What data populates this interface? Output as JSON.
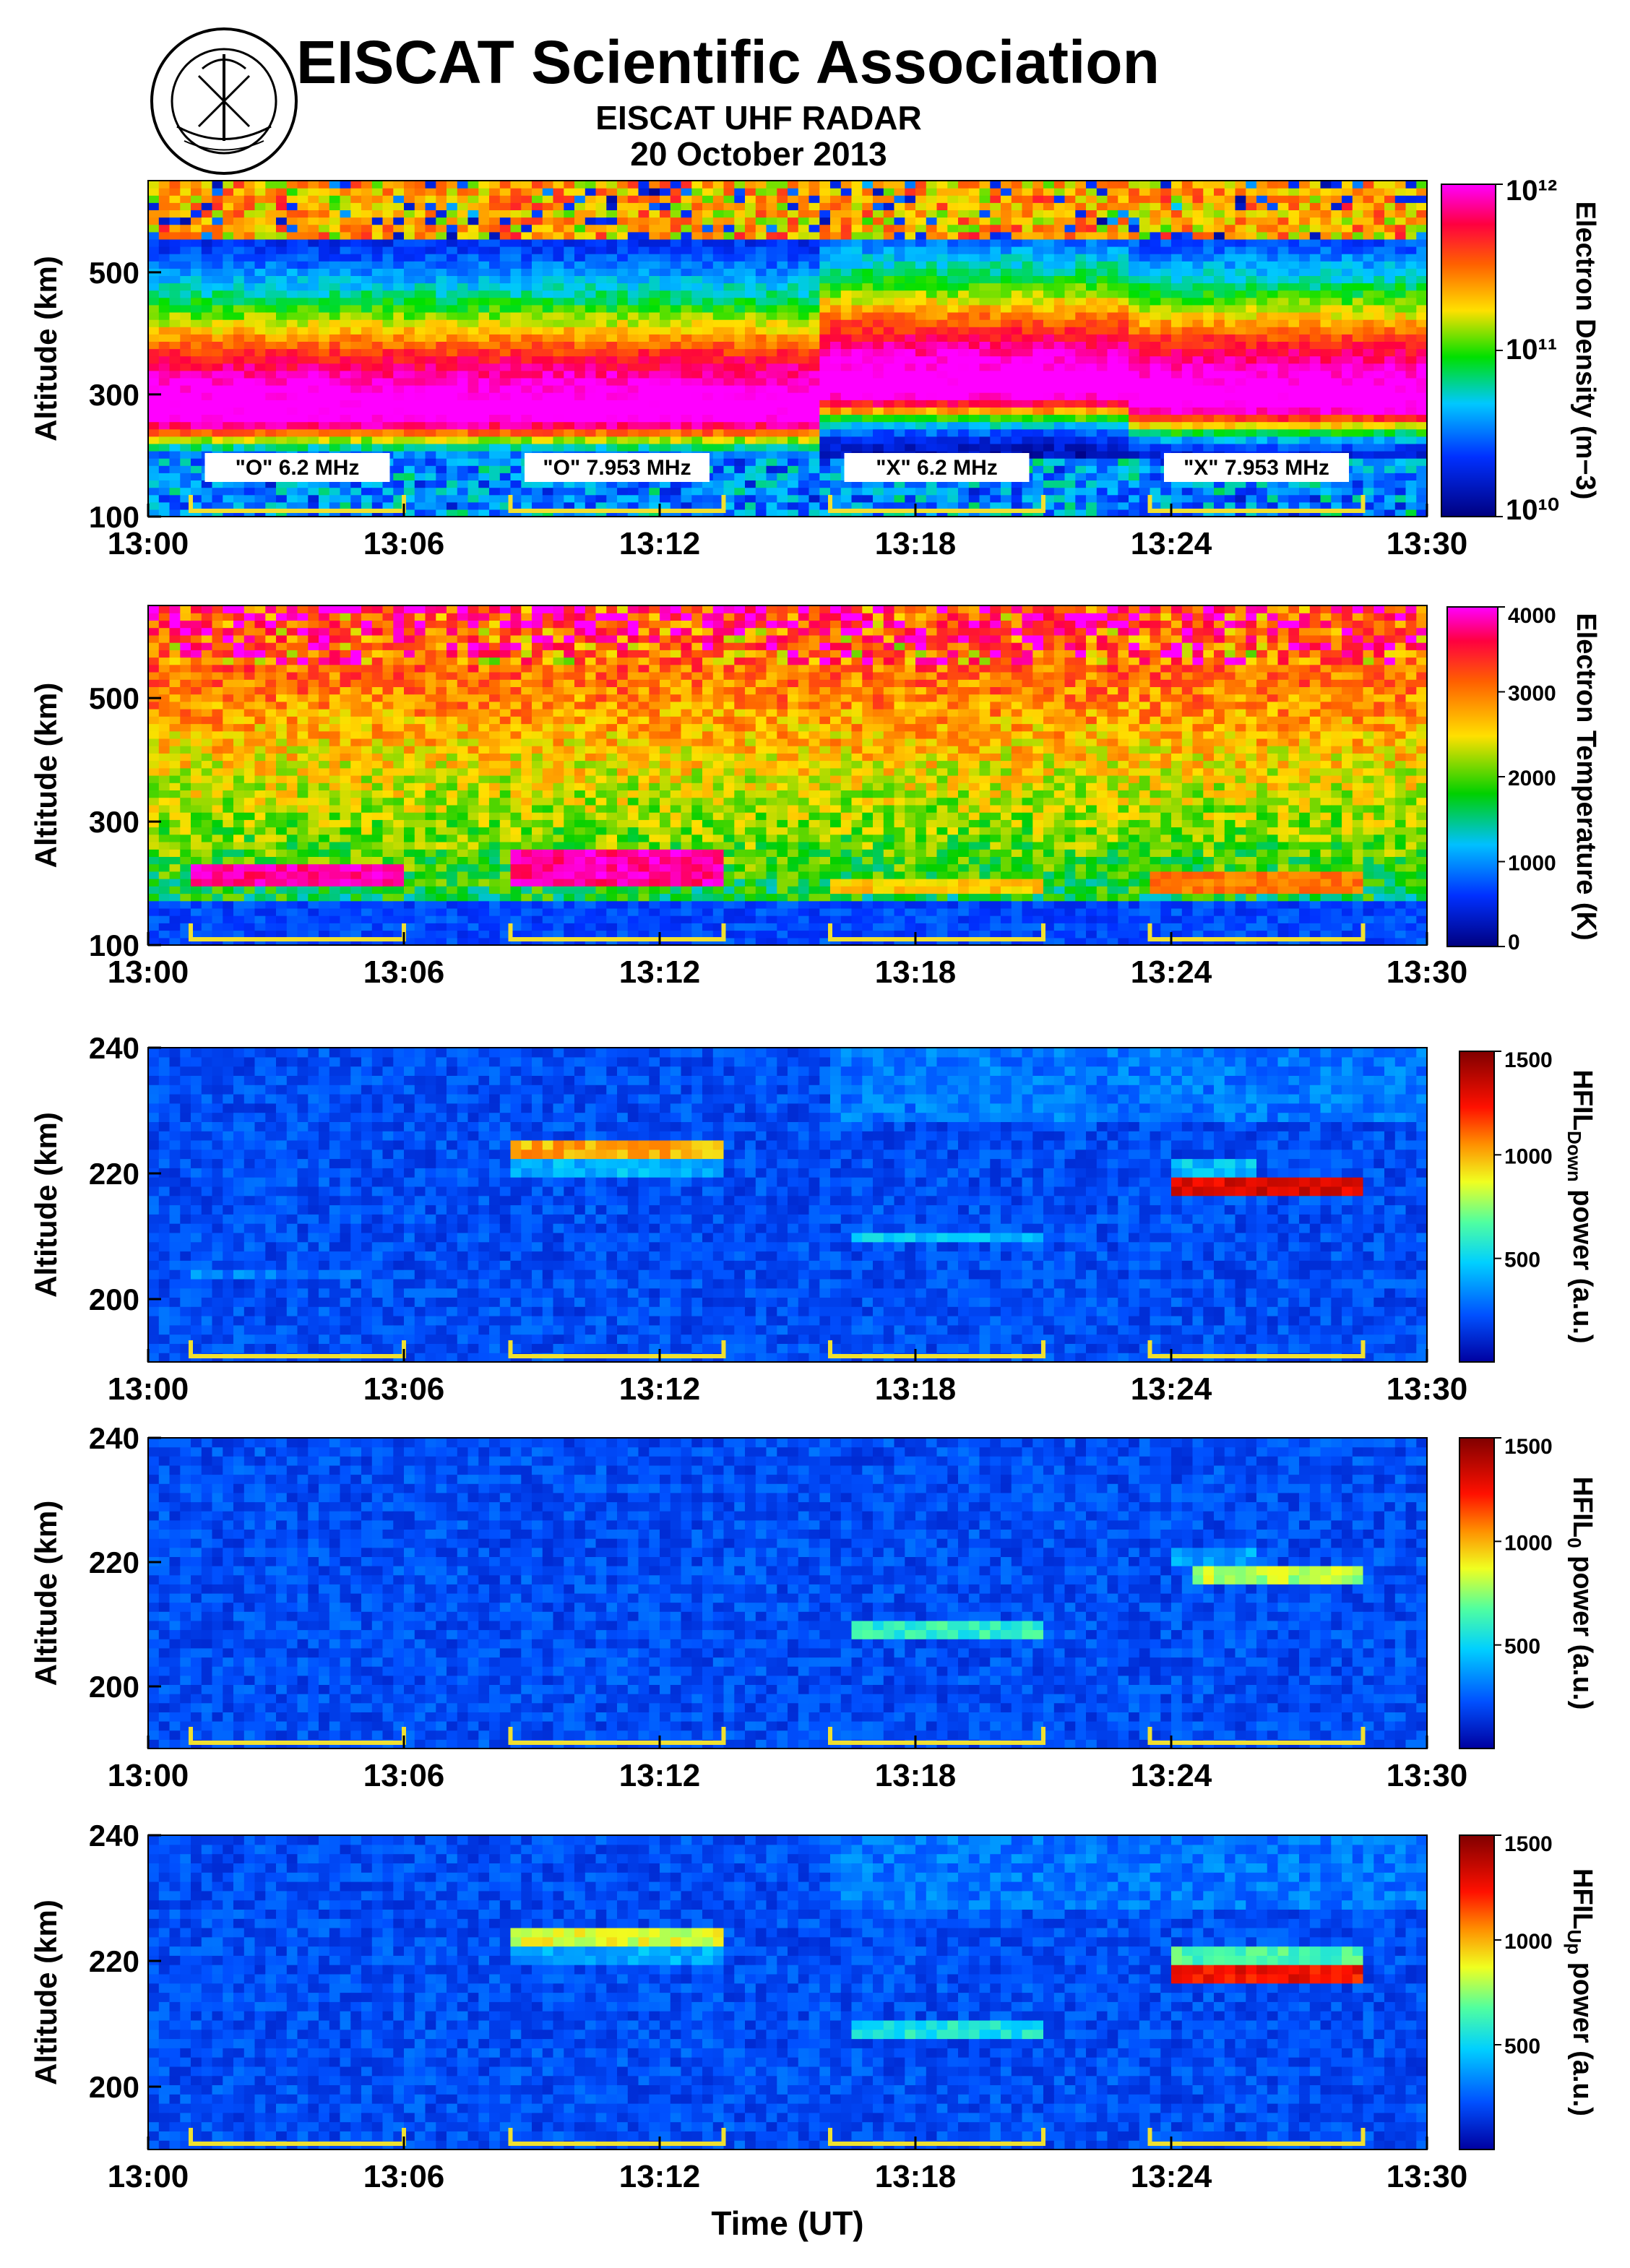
{
  "header": {
    "organization": "EISCAT Scientific Association",
    "instrument": "EISCAT UHF RADAR",
    "date": "20 October 2013"
  },
  "x_axis_title": "Time (UT)",
  "colors": {
    "band_brackets": "#f0e030",
    "background_low": "#0000a0"
  },
  "chart_data": [
    {
      "type": "heatmap",
      "name": "electron-density",
      "xlabel": "",
      "ylabel": "Altitude (km)",
      "x_ticks": [
        "13:00",
        "13:06",
        "13:12",
        "13:18",
        "13:24",
        "13:30"
      ],
      "xlim_min": [
        0,
        30
      ],
      "y_ticks": [
        100,
        300,
        500
      ],
      "ylim": [
        100,
        650
      ],
      "colorbar": {
        "label": "Electron Density (m−3)",
        "scale": "log",
        "tick_labels": [
          "10¹⁰",
          "10¹¹",
          "10¹²"
        ],
        "range": [
          10000000000.0,
          1000000000000.0
        ]
      },
      "annotations": [
        "\"O\" 6.2 MHz",
        "\"O\" 7.953 MHz",
        "\"X\" 6.2 MHz",
        "\"X\" 7.953 MHz"
      ],
      "heating_periods_min": [
        [
          1,
          6
        ],
        [
          8.5,
          13.5
        ],
        [
          16,
          21
        ],
        [
          23.5,
          28.5
        ]
      ]
    },
    {
      "type": "heatmap",
      "name": "electron-temperature",
      "xlabel": "",
      "ylabel": "Altitude (km)",
      "x_ticks": [
        "13:00",
        "13:06",
        "13:12",
        "13:18",
        "13:24",
        "13:30"
      ],
      "xlim_min": [
        0,
        30
      ],
      "y_ticks": [
        100,
        300,
        500
      ],
      "ylim": [
        100,
        650
      ],
      "colorbar": {
        "label": "Electron Temperature (K)",
        "scale": "linear",
        "tick_labels": [
          "0",
          "1000",
          "2000",
          "3000",
          "4000"
        ],
        "range": [
          0,
          4000
        ]
      },
      "enhancements": [
        {
          "t": [
            1,
            6
          ],
          "alt": [
            190,
            230
          ],
          "level": 4000
        },
        {
          "t": [
            8.5,
            13.5
          ],
          "alt": [
            190,
            250
          ],
          "level": 4000
        },
        {
          "t": [
            16,
            21
          ],
          "alt": [
            180,
            210
          ],
          "level": 2800
        },
        {
          "t": [
            23.5,
            28.5
          ],
          "alt": [
            180,
            220
          ],
          "level": 3200
        }
      ],
      "heating_periods_min": [
        [
          1,
          6
        ],
        [
          8.5,
          13.5
        ],
        [
          16,
          21
        ],
        [
          23.5,
          28.5
        ]
      ]
    },
    {
      "type": "heatmap",
      "name": "hfil-down",
      "xlabel": "",
      "ylabel": "Altitude (km)",
      "x_ticks": [
        "13:00",
        "13:06",
        "13:12",
        "13:18",
        "13:24",
        "13:30"
      ],
      "xlim_min": [
        0,
        30
      ],
      "y_ticks": [
        200,
        220,
        240
      ],
      "ylim": [
        190,
        240
      ],
      "colorbar": {
        "label_main": "HFIL",
        "label_sub": "Down",
        "label_tail": " power (a.u.)",
        "scale": "linear",
        "tick_labels": [
          "500",
          "1000",
          "1500"
        ],
        "range": [
          0,
          1500
        ]
      },
      "patches": [
        {
          "t": [
            1,
            5.2
          ],
          "alt": [
            203,
            205
          ],
          "value": 320
        },
        {
          "t": [
            8.5,
            13.5
          ],
          "alt": [
            223,
            226
          ],
          "value": 1000
        },
        {
          "t": [
            8.5,
            13.5
          ],
          "alt": [
            220,
            223
          ],
          "value": 420
        },
        {
          "t": [
            16.5,
            21
          ],
          "alt": [
            209,
            211
          ],
          "value": 480
        },
        {
          "t": [
            24,
            26
          ],
          "alt": [
            220,
            223
          ],
          "value": 450
        },
        {
          "t": [
            24,
            28.5
          ],
          "alt": [
            217,
            220
          ],
          "value": 1300
        }
      ],
      "heating_periods_min": [
        [
          1,
          6
        ],
        [
          8.5,
          13.5
        ],
        [
          16,
          21
        ],
        [
          23.5,
          28.5
        ]
      ]
    },
    {
      "type": "heatmap",
      "name": "hfil-zero",
      "xlabel": "",
      "ylabel": "Altitude (km)",
      "x_ticks": [
        "13:00",
        "13:06",
        "13:12",
        "13:18",
        "13:24",
        "13:30"
      ],
      "xlim_min": [
        0,
        30
      ],
      "y_ticks": [
        200,
        220,
        240
      ],
      "ylim": [
        190,
        240
      ],
      "colorbar": {
        "label_main": "HFIL",
        "label_sub": "0",
        "label_tail": " power (a.u.)",
        "scale": "linear",
        "tick_labels": [
          "500",
          "1000",
          "1500"
        ],
        "range": [
          0,
          1500
        ]
      },
      "patches": [
        {
          "t": [
            16.5,
            21
          ],
          "alt": [
            208,
            211
          ],
          "value": 600
        },
        {
          "t": [
            24,
            26
          ],
          "alt": [
            220,
            222
          ],
          "value": 380
        },
        {
          "t": [
            24.5,
            28.5
          ],
          "alt": [
            217,
            220
          ],
          "value": 800
        }
      ],
      "heating_periods_min": [
        [
          1,
          6
        ],
        [
          8.5,
          13.5
        ],
        [
          16,
          21
        ],
        [
          23.5,
          28.5
        ]
      ]
    },
    {
      "type": "heatmap",
      "name": "hfil-up",
      "xlabel": "Time (UT)",
      "ylabel": "Altitude (km)",
      "x_ticks": [
        "13:00",
        "13:06",
        "13:12",
        "13:18",
        "13:24",
        "13:30"
      ],
      "xlim_min": [
        0,
        30
      ],
      "y_ticks": [
        200,
        220,
        240
      ],
      "ylim": [
        190,
        240
      ],
      "colorbar": {
        "label_main": "HFIL",
        "label_sub": "Up",
        "label_tail": " power (a.u.)",
        "scale": "linear",
        "tick_labels": [
          "500",
          "1000",
          "1500"
        ],
        "range": [
          0,
          1500
        ]
      },
      "patches": [
        {
          "t": [
            8.5,
            13.5
          ],
          "alt": [
            223,
            226
          ],
          "value": 850
        },
        {
          "t": [
            8.5,
            13.5
          ],
          "alt": [
            220,
            223
          ],
          "value": 400
        },
        {
          "t": [
            16.5,
            21
          ],
          "alt": [
            208,
            211
          ],
          "value": 550
        },
        {
          "t": [
            24,
            28.5
          ],
          "alt": [
            220,
            223
          ],
          "value": 650
        },
        {
          "t": [
            24,
            28.5
          ],
          "alt": [
            217,
            220
          ],
          "value": 1250
        }
      ],
      "heating_periods_min": [
        [
          1,
          6
        ],
        [
          8.5,
          13.5
        ],
        [
          16,
          21
        ],
        [
          23.5,
          28.5
        ]
      ]
    }
  ]
}
